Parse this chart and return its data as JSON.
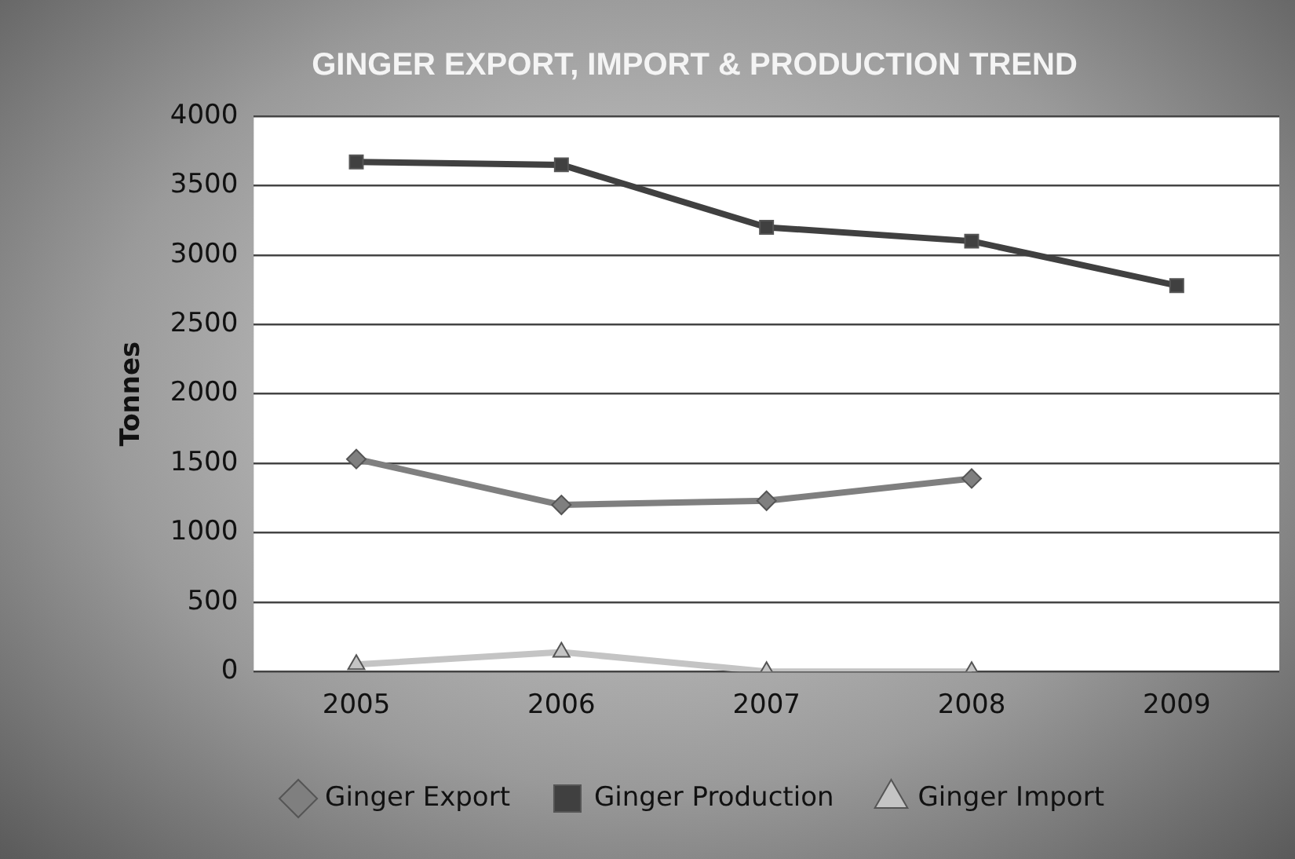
{
  "chart_data": {
    "type": "line",
    "title": "GINGER EXPORT, IMPORT & PRODUCTION TREND",
    "ylabel": "Tonnes",
    "categories": [
      "2005",
      "2006",
      "2007",
      "2008",
      "2009"
    ],
    "series": [
      {
        "name": "Ginger Export",
        "color": "#7f7f7f",
        "marker": "diamond",
        "values": [
          1530,
          1200,
          1230,
          1390,
          null
        ]
      },
      {
        "name": "Ginger Production",
        "color": "#404040",
        "marker": "square",
        "values": [
          3670,
          3650,
          3200,
          3100,
          2780
        ]
      },
      {
        "name": "Ginger Import",
        "color": "#c4c4c4",
        "marker": "triangle",
        "values": [
          50,
          140,
          0,
          0,
          null
        ]
      }
    ],
    "ylim": [
      0,
      4000
    ],
    "yticks": [
      0,
      500,
      1000,
      1500,
      2000,
      2500,
      3000,
      3500,
      4000
    ],
    "grid": "y",
    "legend": "bottom"
  }
}
